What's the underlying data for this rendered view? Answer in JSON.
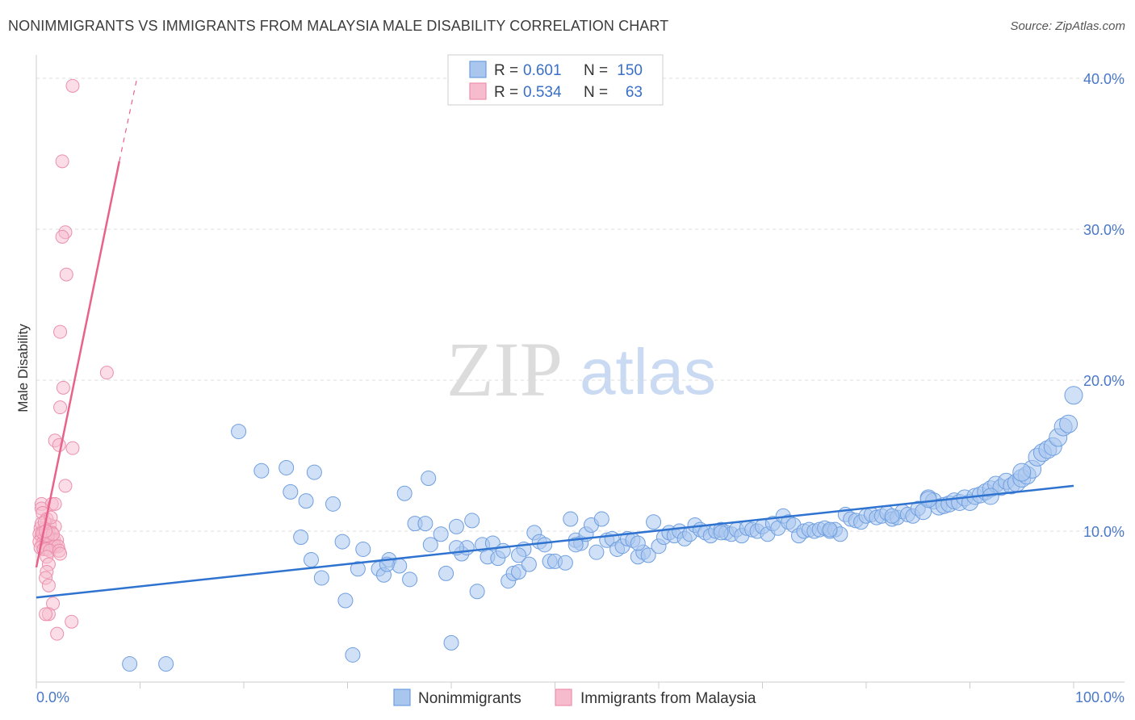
{
  "title": "NONIMMIGRANTS VS IMMIGRANTS FROM MALAYSIA MALE DISABILITY CORRELATION CHART",
  "source": "Source: ZipAtlas.com",
  "watermark": {
    "zip": "ZIP",
    "atlas": "atlas"
  },
  "colors": {
    "blue_fill": "#a9c6ef",
    "blue_stroke": "#6f9fe0",
    "blue_line": "#2f73d0",
    "pink_fill": "#f6bccd",
    "pink_stroke": "#ec8fac",
    "pink_line": "#e8628a",
    "grid": "#dddddd",
    "axis_text": "#4a78c8"
  },
  "legend": {
    "rows": [
      {
        "r_label": "R =",
        "r_value": "0.601",
        "n_label": "N =",
        "n_value": "150"
      },
      {
        "r_label": "R =",
        "r_value": "0.534",
        "n_label": "N =",
        "n_value": "63"
      }
    ]
  },
  "chart_data": {
    "type": "scatter",
    "title": "NONIMMIGRANTS VS IMMIGRANTS FROM MALAYSIA MALE DISABILITY CORRELATION CHART",
    "xlabel": "",
    "ylabel": "Male Disability",
    "xlim": [
      0,
      100
    ],
    "ylim": [
      0,
      40
    ],
    "x_tick_labels": [
      "0.0%",
      "100.0%"
    ],
    "y_ticks": [
      10,
      20,
      30,
      40
    ],
    "y_tick_labels": [
      "10.0%",
      "20.0%",
      "30.0%",
      "40.0%"
    ],
    "grid": true,
    "legend_position": "top-center",
    "series": [
      {
        "name": "Nonimmigrants",
        "color": "#6f9fe0",
        "trend": {
          "x": [
            0,
            100
          ],
          "y": [
            5.6,
            13.0
          ]
        },
        "points": [
          [
            9.0,
            1.2
          ],
          [
            12.5,
            1.2
          ],
          [
            19.5,
            16.6
          ],
          [
            21.7,
            14.0
          ],
          [
            24.1,
            14.2
          ],
          [
            24.5,
            12.6
          ],
          [
            25.5,
            9.6
          ],
          [
            26.0,
            12.0
          ],
          [
            26.5,
            8.1
          ],
          [
            26.8,
            13.9
          ],
          [
            27.5,
            6.9
          ],
          [
            28.6,
            11.8
          ],
          [
            29.5,
            9.3
          ],
          [
            29.8,
            5.4
          ],
          [
            30.5,
            1.8
          ],
          [
            31.0,
            7.5
          ],
          [
            31.5,
            8.8
          ],
          [
            33.0,
            7.5
          ],
          [
            33.5,
            7.1
          ],
          [
            34.0,
            8.1
          ],
          [
            35.0,
            7.7
          ],
          [
            35.5,
            12.5
          ],
          [
            36.0,
            6.8
          ],
          [
            36.5,
            10.5
          ],
          [
            37.5,
            10.5
          ],
          [
            37.8,
            13.5
          ],
          [
            38.0,
            9.1
          ],
          [
            39.0,
            9.8
          ],
          [
            39.5,
            7.2
          ],
          [
            40.0,
            2.6
          ],
          [
            40.5,
            10.3
          ],
          [
            41.0,
            8.5
          ],
          [
            42.5,
            6.0
          ],
          [
            41.5,
            8.9
          ],
          [
            42.0,
            10.7
          ],
          [
            43.0,
            9.1
          ],
          [
            43.5,
            8.3
          ],
          [
            44.0,
            9.2
          ],
          [
            44.5,
            8.2
          ],
          [
            45.0,
            8.7
          ],
          [
            45.5,
            6.7
          ],
          [
            46.0,
            7.2
          ],
          [
            46.5,
            7.3
          ],
          [
            47.0,
            8.8
          ],
          [
            47.5,
            7.8
          ],
          [
            48.0,
            9.9
          ],
          [
            48.5,
            9.3
          ],
          [
            49.0,
            9.1
          ],
          [
            49.5,
            8.0
          ],
          [
            50.0,
            8.0
          ],
          [
            51.0,
            7.9
          ],
          [
            51.5,
            10.8
          ],
          [
            52.0,
            9.4
          ],
          [
            52.5,
            9.2
          ],
          [
            53.0,
            9.8
          ],
          [
            53.5,
            10.4
          ],
          [
            54.0,
            8.6
          ],
          [
            54.5,
            10.8
          ],
          [
            55.0,
            9.4
          ],
          [
            55.5,
            9.5
          ],
          [
            56.0,
            8.8
          ],
          [
            56.5,
            9.0
          ],
          [
            57.0,
            9.5
          ],
          [
            57.5,
            9.4
          ],
          [
            58.0,
            8.3
          ],
          [
            58.5,
            8.6
          ],
          [
            59.0,
            8.4
          ],
          [
            59.5,
            10.6
          ],
          [
            60.0,
            9.0
          ],
          [
            60.5,
            9.6
          ],
          [
            61.0,
            9.9
          ],
          [
            61.5,
            9.7
          ],
          [
            62.0,
            10.0
          ],
          [
            62.5,
            9.5
          ],
          [
            63.0,
            9.8
          ],
          [
            63.5,
            10.4
          ],
          [
            64.0,
            10.1
          ],
          [
            64.5,
            9.9
          ],
          [
            65.0,
            9.7
          ],
          [
            65.5,
            10.0
          ],
          [
            66.0,
            10.1
          ],
          [
            66.5,
            9.9
          ],
          [
            67.0,
            9.8
          ],
          [
            67.5,
            10.1
          ],
          [
            68.0,
            9.7
          ],
          [
            68.5,
            10.2
          ],
          [
            69.0,
            10.1
          ],
          [
            69.5,
            10.0
          ],
          [
            70.0,
            10.3
          ],
          [
            70.5,
            9.8
          ],
          [
            71.0,
            10.5
          ],
          [
            71.5,
            10.2
          ],
          [
            72.0,
            11.0
          ],
          [
            72.5,
            10.6
          ],
          [
            73.0,
            10.4
          ],
          [
            73.5,
            9.7
          ],
          [
            74.0,
            10.0
          ],
          [
            74.5,
            10.1
          ],
          [
            75.0,
            10.0
          ],
          [
            75.5,
            10.1
          ],
          [
            76.0,
            10.2
          ],
          [
            76.5,
            10.0
          ],
          [
            77.0,
            10.1
          ],
          [
            77.5,
            9.8
          ],
          [
            78.0,
            11.1
          ],
          [
            78.5,
            10.8
          ],
          [
            79.0,
            10.7
          ],
          [
            79.5,
            10.6
          ],
          [
            80.0,
            11.0
          ],
          [
            80.5,
            11.1
          ],
          [
            81.0,
            10.9
          ],
          [
            81.5,
            11.0
          ],
          [
            82.0,
            11.2
          ],
          [
            82.5,
            10.8
          ],
          [
            83.0,
            10.9
          ],
          [
            83.5,
            11.3
          ],
          [
            84.0,
            11.1
          ],
          [
            84.5,
            11.0
          ],
          [
            85.0,
            11.5
          ],
          [
            85.5,
            11.3
          ],
          [
            86.0,
            12.2
          ],
          [
            86.5,
            12.0
          ],
          [
            87.0,
            11.6
          ],
          [
            87.5,
            11.7
          ],
          [
            88.0,
            11.8
          ],
          [
            88.5,
            12.0
          ],
          [
            89.0,
            11.9
          ],
          [
            89.5,
            12.2
          ],
          [
            90.0,
            11.9
          ],
          [
            90.5,
            12.3
          ],
          [
            91.0,
            12.4
          ],
          [
            91.5,
            12.6
          ],
          [
            92.0,
            12.8
          ],
          [
            92.5,
            13.1
          ],
          [
            93.0,
            12.9
          ],
          [
            93.5,
            13.3
          ],
          [
            94.0,
            13.0
          ],
          [
            94.5,
            13.2
          ],
          [
            95.0,
            13.5
          ],
          [
            95.5,
            13.7
          ],
          [
            96.0,
            14.1
          ],
          [
            96.5,
            14.9
          ],
          [
            97.0,
            15.2
          ],
          [
            97.5,
            15.4
          ],
          [
            98.0,
            15.6
          ],
          [
            98.5,
            16.2
          ],
          [
            99.0,
            16.9
          ],
          [
            99.5,
            17.1
          ],
          [
            100.0,
            19.0
          ],
          [
            95.0,
            13.9
          ],
          [
            92.0,
            12.3
          ],
          [
            86.0,
            12.1
          ],
          [
            82.5,
            11.0
          ],
          [
            76.5,
            10.1
          ],
          [
            66.0,
            9.9
          ],
          [
            58.0,
            9.2
          ],
          [
            52.0,
            9.1
          ],
          [
            46.5,
            8.4
          ],
          [
            40.5,
            8.9
          ],
          [
            33.8,
            7.8
          ]
        ]
      },
      {
        "name": "Immigrants from Malaysia",
        "color": "#ec8fac",
        "trend": {
          "x": [
            0,
            8.0
          ],
          "y": [
            7.6,
            34.5
          ]
        },
        "trend_dashed": {
          "x": [
            8.0,
            9.7
          ],
          "y": [
            34.5,
            40.0
          ]
        },
        "points": [
          [
            3.5,
            39.5
          ],
          [
            2.5,
            34.5
          ],
          [
            2.8,
            29.8
          ],
          [
            2.5,
            29.5
          ],
          [
            2.9,
            27.0
          ],
          [
            2.3,
            23.2
          ],
          [
            2.6,
            19.5
          ],
          [
            2.3,
            18.2
          ],
          [
            6.8,
            20.5
          ],
          [
            1.8,
            16.0
          ],
          [
            3.5,
            15.5
          ],
          [
            2.2,
            15.7
          ],
          [
            2.8,
            13.0
          ],
          [
            0.5,
            11.8
          ],
          [
            1.5,
            11.8
          ],
          [
            1.8,
            11.8
          ],
          [
            0.5,
            11.5
          ],
          [
            0.6,
            11.2
          ],
          [
            1.0,
            10.8
          ],
          [
            1.3,
            10.4
          ],
          [
            1.8,
            10.3
          ],
          [
            0.4,
            10.2
          ],
          [
            0.7,
            10.1
          ],
          [
            1.0,
            10.0
          ],
          [
            1.2,
            9.9
          ],
          [
            1.5,
            9.9
          ],
          [
            0.3,
            9.8
          ],
          [
            0.5,
            9.7
          ],
          [
            0.8,
            9.6
          ],
          [
            1.1,
            9.5
          ],
          [
            1.4,
            9.5
          ],
          [
            1.7,
            9.4
          ],
          [
            2.0,
            9.4
          ],
          [
            0.3,
            9.3
          ],
          [
            0.6,
            9.2
          ],
          [
            0.9,
            9.2
          ],
          [
            1.2,
            9.1
          ],
          [
            1.5,
            9.0
          ],
          [
            1.8,
            9.0
          ],
          [
            2.1,
            9.0
          ],
          [
            0.4,
            8.9
          ],
          [
            0.7,
            8.8
          ],
          [
            1.0,
            8.8
          ],
          [
            1.3,
            8.7
          ],
          [
            2.2,
            8.7
          ],
          [
            2.3,
            8.5
          ],
          [
            1.0,
            8.3
          ],
          [
            1.2,
            7.8
          ],
          [
            1.0,
            7.3
          ],
          [
            0.9,
            6.9
          ],
          [
            1.2,
            6.4
          ],
          [
            1.6,
            5.2
          ],
          [
            1.2,
            4.5
          ],
          [
            3.4,
            4.0
          ],
          [
            0.9,
            4.5
          ],
          [
            2.0,
            3.2
          ],
          [
            0.5,
            10.5
          ],
          [
            0.8,
            10.6
          ],
          [
            1.4,
            10.9
          ],
          [
            0.6,
            9.9
          ],
          [
            1.1,
            9.7
          ],
          [
            1.6,
            9.8
          ],
          [
            0.9,
            10.0
          ]
        ]
      }
    ]
  },
  "axes": {
    "ylabel": "Male Disability",
    "x_left_label": "0.0%",
    "x_right_label": "100.0%",
    "y_labels": [
      "10.0%",
      "20.0%",
      "30.0%",
      "40.0%"
    ]
  },
  "bottom_legend": {
    "items": [
      "Nonimmigrants",
      "Immigrants from Malaysia"
    ]
  }
}
